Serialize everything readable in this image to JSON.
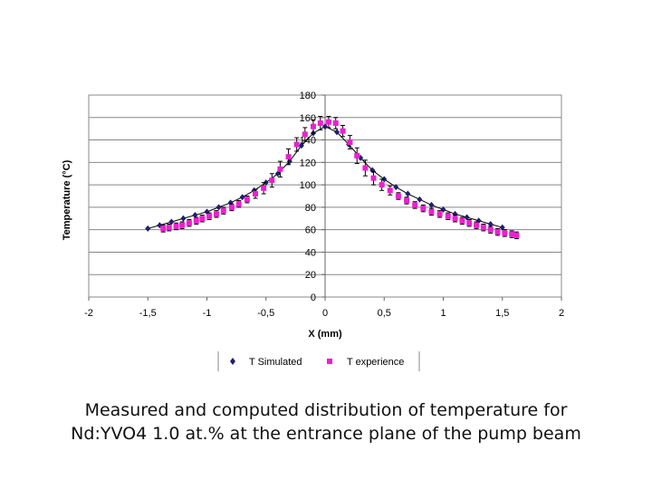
{
  "chart_data": {
    "type": "scatter",
    "xlabel": "X (mm)",
    "ylabel": "Temperature (°C)",
    "xlim": [
      -2,
      2
    ],
    "ylim": [
      0,
      180
    ],
    "x_ticks": [
      -2,
      -1.5,
      -1,
      -0.5,
      0,
      0.5,
      1,
      1.5,
      2
    ],
    "x_tick_labels": [
      "-2",
      "-1,5",
      "-1",
      "-0,5",
      "0",
      "0,5",
      "1",
      "1,5",
      "2"
    ],
    "y_ticks": [
      0,
      20,
      40,
      60,
      80,
      100,
      120,
      140,
      160,
      180
    ],
    "y_tick_labels": [
      "0",
      "20",
      "40",
      "60",
      "80",
      "100",
      "120",
      "140",
      "160",
      "180"
    ],
    "grid": "horizontal",
    "legend_position": "bottom",
    "series": [
      {
        "name": "T Simulated",
        "color": "#1f1f6e",
        "marker": "diamond",
        "line": true,
        "x": [
          -1.5,
          -1.4,
          -1.3,
          -1.2,
          -1.1,
          -1.0,
          -0.9,
          -0.8,
          -0.7,
          -0.6,
          -0.5,
          -0.4,
          -0.3,
          -0.2,
          -0.1,
          0.0,
          0.1,
          0.2,
          0.3,
          0.4,
          0.5,
          0.6,
          0.7,
          0.8,
          0.9,
          1.0,
          1.1,
          1.2,
          1.3,
          1.4,
          1.5
        ],
        "values": [
          61,
          64,
          67,
          70,
          73,
          76,
          80,
          84,
          89,
          95,
          102,
          110,
          121,
          135,
          146,
          152,
          147,
          136,
          124,
          113,
          105,
          98,
          92,
          87,
          82,
          78,
          74,
          71,
          68,
          65,
          62
        ]
      },
      {
        "name": "T experience",
        "color": "#ee1fd0",
        "marker": "square",
        "line": false,
        "error_bars": true,
        "x": [
          -1.37,
          -1.32,
          -1.26,
          -1.21,
          -1.15,
          -1.09,
          -1.04,
          -0.98,
          -0.92,
          -0.86,
          -0.79,
          -0.73,
          -0.66,
          -0.59,
          -0.52,
          -0.45,
          -0.38,
          -0.31,
          -0.24,
          -0.17,
          -0.1,
          -0.04,
          0.03,
          0.09,
          0.15,
          0.21,
          0.27,
          0.34,
          0.41,
          0.48,
          0.55,
          0.62,
          0.69,
          0.76,
          0.83,
          0.9,
          0.97,
          1.04,
          1.1,
          1.16,
          1.22,
          1.28,
          1.34,
          1.4,
          1.46,
          1.52,
          1.58,
          1.62
        ],
        "values": [
          61,
          62,
          63,
          64,
          66,
          68,
          70,
          72,
          74,
          77,
          80,
          83,
          87,
          92,
          97,
          104,
          114,
          125,
          136,
          145,
          152,
          155,
          156,
          155,
          148,
          138,
          126,
          115,
          106,
          100,
          95,
          90,
          86,
          82,
          79,
          76,
          74,
          72,
          70,
          68,
          66,
          64,
          62,
          60,
          58,
          57,
          56,
          55
        ],
        "error": [
          3,
          3,
          3,
          3,
          3,
          3,
          3,
          3,
          3,
          3,
          3,
          3,
          3,
          4,
          5,
          6,
          7,
          7,
          6,
          6,
          6,
          6,
          5,
          5,
          5,
          6,
          7,
          7,
          6,
          5,
          4,
          3,
          3,
          3,
          3,
          3,
          3,
          3,
          3,
          3,
          3,
          3,
          3,
          3,
          3,
          3,
          3,
          3
        ]
      }
    ]
  },
  "caption": {
    "line1": "Measured and computed distribution of temperature for",
    "line2": "Nd:YVO4 1.0 at.% at the entrance plane of the pump beam"
  }
}
